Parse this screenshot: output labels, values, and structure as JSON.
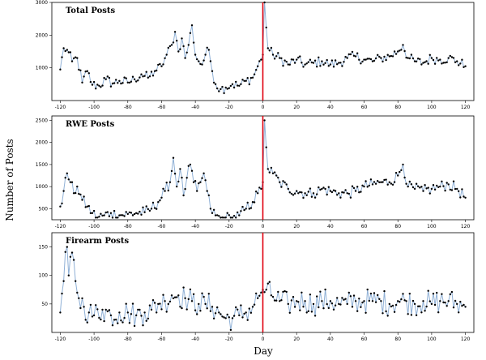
{
  "chart_data": {
    "type": "line",
    "xlabel": "Day",
    "ylabel": "Number of Posts",
    "xlim": [
      -125,
      125
    ],
    "xticks": [
      -120,
      -100,
      -80,
      -60,
      -40,
      -20,
      0,
      20,
      40,
      60,
      80,
      100,
      120
    ],
    "reference_line_x": 0,
    "reference_line_color": "#e0000f",
    "line_color": "#8fb0d6",
    "point_color": "#000000",
    "grid": false,
    "panels": [
      {
        "title": "Total Posts",
        "ylim": [
          0,
          3000
        ],
        "yticks": [
          1000,
          2000,
          3000
        ],
        "key_points": [
          [
            -120,
            950
          ],
          [
            -118,
            1600
          ],
          [
            -116,
            1550
          ],
          [
            -113,
            1200
          ],
          [
            -110,
            1300
          ],
          [
            -107,
            550
          ],
          [
            -104,
            900
          ],
          [
            -101,
            480
          ],
          [
            -97,
            450
          ],
          [
            -93,
            650
          ],
          [
            -89,
            520
          ],
          [
            -85,
            600
          ],
          [
            -80,
            550
          ],
          [
            -76,
            650
          ],
          [
            -72,
            800
          ],
          [
            -68,
            700
          ],
          [
            -64,
            900
          ],
          [
            -60,
            1050
          ],
          [
            -57,
            1400
          ],
          [
            -54,
            1700
          ],
          [
            -52,
            2100
          ],
          [
            -50,
            1500
          ],
          [
            -48,
            1900
          ],
          [
            -46,
            1300
          ],
          [
            -44,
            1700
          ],
          [
            -42,
            2300
          ],
          [
            -40,
            1400
          ],
          [
            -38,
            1200
          ],
          [
            -36,
            1100
          ],
          [
            -34,
            1400
          ],
          [
            -32,
            1550
          ],
          [
            -30,
            900
          ],
          [
            -28,
            500
          ],
          [
            -25,
            350
          ],
          [
            -22,
            400
          ],
          [
            -18,
            500
          ],
          [
            -14,
            450
          ],
          [
            -10,
            600
          ],
          [
            -6,
            700
          ],
          [
            -3,
            1050
          ],
          [
            -1,
            1250
          ],
          [
            0,
            1400
          ],
          [
            1,
            3000
          ],
          [
            3,
            1600
          ],
          [
            6,
            1400
          ],
          [
            10,
            1300
          ],
          [
            15,
            1100
          ],
          [
            20,
            1250
          ],
          [
            25,
            1100
          ],
          [
            30,
            1150
          ],
          [
            35,
            1200
          ],
          [
            40,
            1100
          ],
          [
            45,
            1150
          ],
          [
            50,
            1300
          ],
          [
            55,
            1350
          ],
          [
            60,
            1250
          ],
          [
            65,
            1200
          ],
          [
            70,
            1300
          ],
          [
            75,
            1350
          ],
          [
            80,
            1500
          ],
          [
            83,
            1700
          ],
          [
            86,
            1300
          ],
          [
            90,
            1200
          ],
          [
            95,
            1150
          ],
          [
            100,
            1300
          ],
          [
            105,
            1250
          ],
          [
            110,
            1300
          ],
          [
            115,
            1200
          ],
          [
            120,
            1050
          ]
        ],
        "noise": 160
      },
      {
        "title": "RWE Posts",
        "ylim": [
          250,
          2600
        ],
        "yticks": [
          500,
          1000,
          1500,
          2000,
          2500
        ],
        "key_points": [
          [
            -120,
            550
          ],
          [
            -118,
            900
          ],
          [
            -116,
            1300
          ],
          [
            -114,
            1100
          ],
          [
            -112,
            850
          ],
          [
            -110,
            1000
          ],
          [
            -107,
            700
          ],
          [
            -104,
            550
          ],
          [
            -101,
            400
          ],
          [
            -98,
            300
          ],
          [
            -94,
            350
          ],
          [
            -90,
            400
          ],
          [
            -85,
            350
          ],
          [
            -80,
            380
          ],
          [
            -75,
            400
          ],
          [
            -70,
            420
          ],
          [
            -66,
            500
          ],
          [
            -62,
            650
          ],
          [
            -58,
            900
          ],
          [
            -55,
            1100
          ],
          [
            -53,
            1650
          ],
          [
            -51,
            1000
          ],
          [
            -49,
            1400
          ],
          [
            -47,
            800
          ],
          [
            -45,
            1200
          ],
          [
            -43,
            1500
          ],
          [
            -41,
            1100
          ],
          [
            -39,
            900
          ],
          [
            -37,
            1100
          ],
          [
            -35,
            1300
          ],
          [
            -33,
            900
          ],
          [
            -31,
            500
          ],
          [
            -28,
            350
          ],
          [
            -25,
            280
          ],
          [
            -22,
            300
          ],
          [
            -18,
            280
          ],
          [
            -14,
            350
          ],
          [
            -10,
            500
          ],
          [
            -6,
            650
          ],
          [
            -3,
            850
          ],
          [
            -1,
            950
          ],
          [
            0,
            1100
          ],
          [
            1,
            2500
          ],
          [
            3,
            1400
          ],
          [
            6,
            1300
          ],
          [
            10,
            1100
          ],
          [
            15,
            950
          ],
          [
            20,
            900
          ],
          [
            25,
            850
          ],
          [
            30,
            850
          ],
          [
            35,
            950
          ],
          [
            40,
            900
          ],
          [
            45,
            850
          ],
          [
            50,
            850
          ],
          [
            55,
            900
          ],
          [
            60,
            1000
          ],
          [
            65,
            1050
          ],
          [
            70,
            1100
          ],
          [
            75,
            1100
          ],
          [
            80,
            1250
          ],
          [
            83,
            1500
          ],
          [
            86,
            1000
          ],
          [
            90,
            950
          ],
          [
            95,
            900
          ],
          [
            100,
            950
          ],
          [
            105,
            1000
          ],
          [
            110,
            1050
          ],
          [
            115,
            950
          ],
          [
            120,
            750
          ]
        ],
        "noise": 130
      },
      {
        "title": "Firearm Posts",
        "ylim": [
          0,
          175
        ],
        "yticks": [
          50,
          100,
          150
        ],
        "key_points": [
          [
            -120,
            35
          ],
          [
            -118,
            90
          ],
          [
            -116,
            150
          ],
          [
            -115,
            100
          ],
          [
            -113,
            140
          ],
          [
            -111,
            90
          ],
          [
            -109,
            60
          ],
          [
            -106,
            45
          ],
          [
            -103,
            35
          ],
          [
            -100,
            30
          ],
          [
            -95,
            40
          ],
          [
            -90,
            30
          ],
          [
            -85,
            35
          ],
          [
            -80,
            35
          ],
          [
            -75,
            30
          ],
          [
            -70,
            35
          ],
          [
            -66,
            40
          ],
          [
            -62,
            50
          ],
          [
            -58,
            55
          ],
          [
            -54,
            65
          ],
          [
            -50,
            65
          ],
          [
            -46,
            60
          ],
          [
            -42,
            55
          ],
          [
            -38,
            50
          ],
          [
            -34,
            50
          ],
          [
            -30,
            45
          ],
          [
            -26,
            35
          ],
          [
            -22,
            25
          ],
          [
            -18,
            25
          ],
          [
            -14,
            30
          ],
          [
            -10,
            35
          ],
          [
            -6,
            45
          ],
          [
            -3,
            60
          ],
          [
            -1,
            70
          ],
          [
            0,
            75
          ],
          [
            2,
            75
          ],
          [
            5,
            65
          ],
          [
            10,
            55
          ],
          [
            15,
            50
          ],
          [
            20,
            55
          ],
          [
            25,
            55
          ],
          [
            30,
            50
          ],
          [
            35,
            55
          ],
          [
            40,
            55
          ],
          [
            45,
            50
          ],
          [
            50,
            50
          ],
          [
            55,
            55
          ],
          [
            60,
            55
          ],
          [
            65,
            55
          ],
          [
            70,
            55
          ],
          [
            75,
            50
          ],
          [
            80,
            55
          ],
          [
            85,
            55
          ],
          [
            90,
            50
          ],
          [
            95,
            55
          ],
          [
            100,
            50
          ],
          [
            105,
            55
          ],
          [
            110,
            55
          ],
          [
            115,
            50
          ],
          [
            120,
            45
          ]
        ],
        "noise": 22
      }
    ]
  }
}
